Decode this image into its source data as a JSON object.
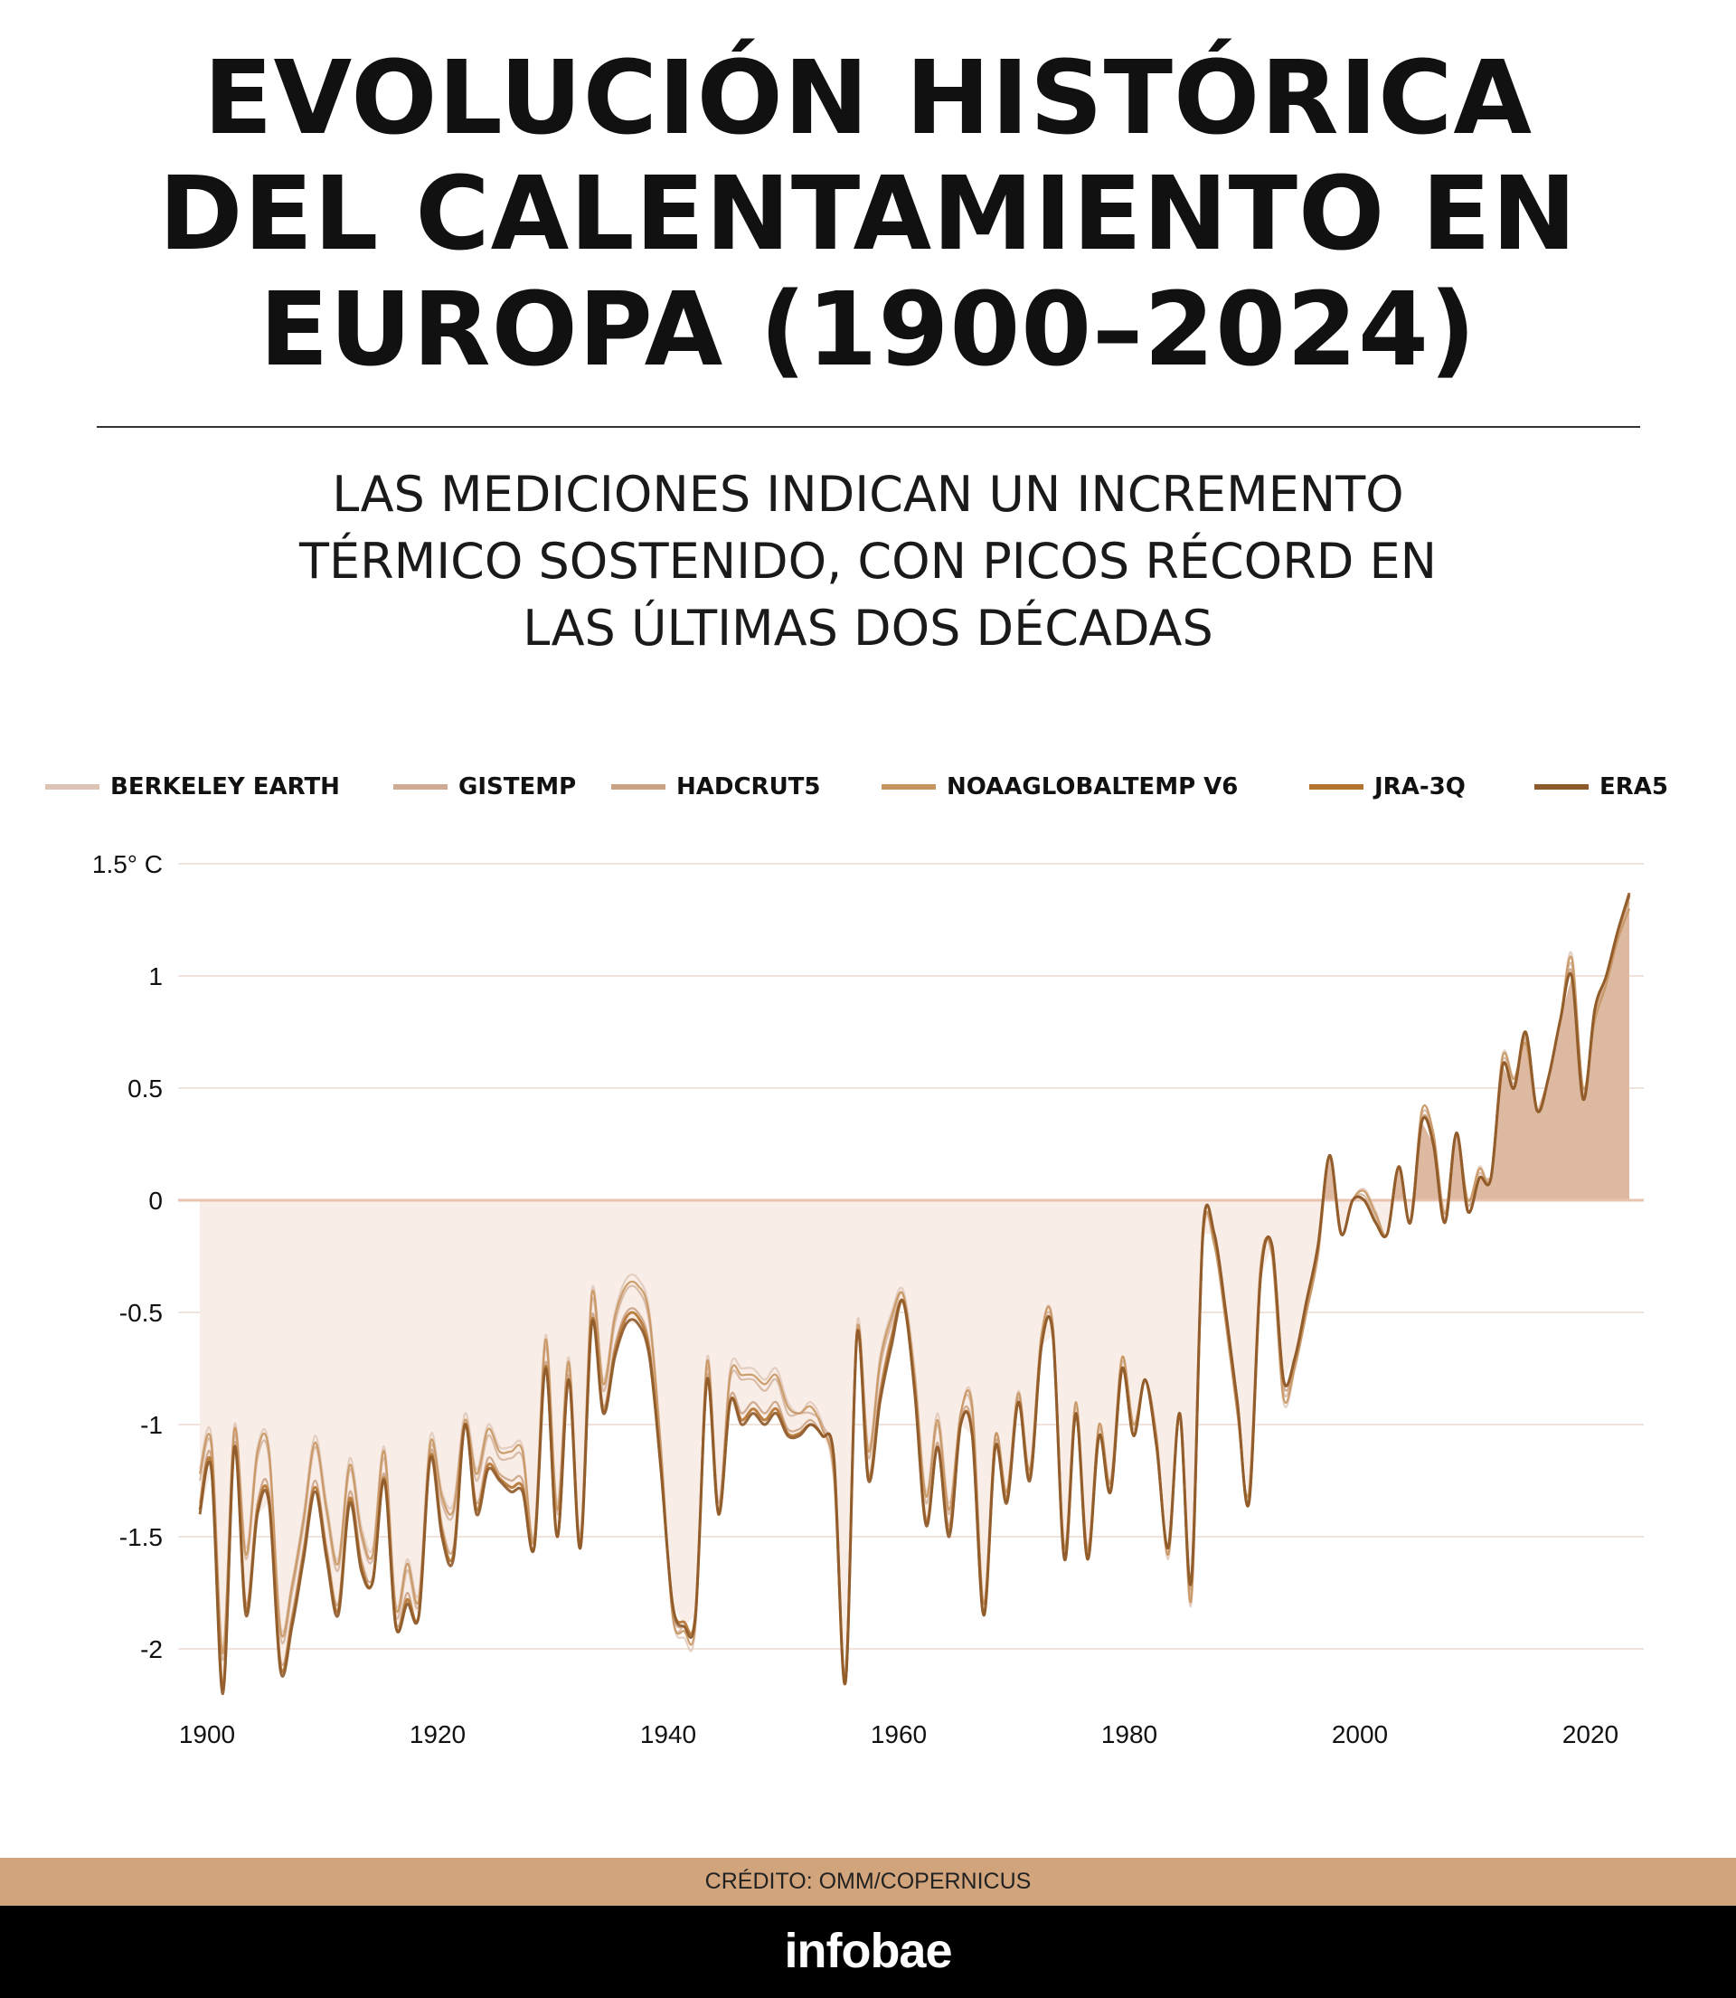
{
  "title_lines": [
    "EVOLUCIÓN HISTÓRICA",
    "DEL CALENTAMIENTO EN",
    "EUROPA (1900–2024)"
  ],
  "subtitle_lines": [
    "LAS MEDICIONES INDICAN UN INCREMENTO",
    "TÉRMICO SOSTENIDO, CON PICOS RÉCORD EN",
    "LAS ÚLTIMAS DOS DÉCADAS"
  ],
  "credit": "CRÉDITO: OMM/COPERNICUS",
  "logo": "infobae",
  "chart_data": {
    "type": "line",
    "title": "EVOLUCIÓN HISTÓRICA DEL CALENTAMIENTO EN EUROPA (1900–2024)",
    "xlabel": "",
    "ylabel": "",
    "x_start": 1900,
    "x_end": 2024,
    "xlim": [
      1900,
      2025
    ],
    "ylim": [
      -2.25,
      1.5
    ],
    "y_ticks": [
      1.5,
      1,
      0.5,
      0,
      -0.5,
      -1,
      -1.5,
      -2
    ],
    "y_tick_labels": [
      "1.5° C",
      "1",
      "0.5",
      "0",
      "-0.5",
      "-1",
      "-1.5",
      "-2"
    ],
    "x_ticks": [
      1900,
      1920,
      1940,
      1960,
      1980,
      2000,
      2020
    ],
    "x_tick_labels": [
      "1900",
      "1920",
      "1940",
      "1960",
      "1980",
      "2000",
      "2020"
    ],
    "grid": true,
    "legend_position": "top",
    "fill": {
      "below_zero": "#f8ede7",
      "above_zero": "#dcb9a0"
    },
    "series": [
      {
        "name": "BERKELEY EARTH",
        "color": "#dcc3b3",
        "values": [
          -1.2,
          -1.05,
          -2.0,
          -1.0,
          -1.55,
          -1.1,
          -1.1,
          -1.9,
          -1.7,
          -1.4,
          -1.05,
          -1.35,
          -1.6,
          -1.15,
          -1.45,
          -1.55,
          -1.1,
          -1.8,
          -1.6,
          -1.75,
          -1.05,
          -1.3,
          -1.35,
          -0.95,
          -1.2,
          -1.0,
          -1.1,
          -1.1,
          -1.1,
          -1.5,
          -0.6,
          -1.35,
          -0.7,
          -1.5,
          -0.4,
          -0.8,
          -0.5,
          -0.35,
          -0.35,
          -0.5,
          -1.1,
          -1.85,
          -1.95,
          -1.9,
          -0.7,
          -1.35,
          -0.75,
          -0.75,
          -0.75,
          -0.8,
          -0.75,
          -0.9,
          -0.95,
          -0.9,
          -1.0,
          -1.25,
          -2.1,
          -0.55,
          -1.1,
          -0.7,
          -0.5,
          -0.4,
          -0.75,
          -1.3,
          -0.95,
          -1.35,
          -0.95,
          -0.9,
          -1.8,
          -1.05,
          -1.3,
          -0.85,
          -1.2,
          -0.6,
          -0.55,
          -1.55,
          -0.9,
          -1.55,
          -1.0,
          -1.25,
          -0.7,
          -1.0,
          -0.8,
          -1.05,
          -1.6,
          -0.95,
          -1.8,
          -0.2,
          -0.2,
          -0.55,
          -0.95,
          -1.3,
          -0.3,
          -0.25,
          -0.9,
          -0.75,
          -0.5,
          -0.25,
          0.2,
          -0.15,
          0.0,
          0.05,
          -0.05,
          -0.15,
          0.15,
          -0.1,
          0.4,
          0.3,
          -0.05,
          0.3,
          0.0,
          0.15,
          0.1,
          0.65,
          0.55,
          0.7,
          0.4,
          0.55,
          0.8,
          1.1,
          0.5,
          0.8,
          0.95,
          1.15,
          1.3
        ]
      },
      {
        "name": "GISTEMP",
        "color": "#cfab93",
        "values": [
          -1.25,
          -1.1,
          -2.05,
          -1.05,
          -1.6,
          -1.15,
          -1.15,
          -1.95,
          -1.75,
          -1.45,
          -1.1,
          -1.4,
          -1.65,
          -1.2,
          -1.5,
          -1.6,
          -1.15,
          -1.85,
          -1.65,
          -1.8,
          -1.1,
          -1.35,
          -1.4,
          -1.0,
          -1.25,
          -1.05,
          -1.15,
          -1.15,
          -1.15,
          -1.5,
          -0.65,
          -1.4,
          -0.75,
          -1.5,
          -0.45,
          -0.85,
          -0.55,
          -0.4,
          -0.4,
          -0.55,
          -1.1,
          -1.85,
          -1.9,
          -1.85,
          -0.75,
          -1.35,
          -0.8,
          -0.8,
          -0.8,
          -0.85,
          -0.8,
          -0.95,
          -0.95,
          -0.95,
          -1.0,
          -1.2,
          -2.1,
          -0.6,
          -1.15,
          -0.75,
          -0.55,
          -0.42,
          -0.8,
          -1.35,
          -1.0,
          -1.4,
          -0.95,
          -0.95,
          -1.8,
          -1.05,
          -1.3,
          -0.88,
          -1.2,
          -0.62,
          -0.58,
          -1.55,
          -0.92,
          -1.58,
          -1.02,
          -1.28,
          -0.72,
          -1.02,
          -0.8,
          -1.08,
          -1.58,
          -0.95,
          -1.75,
          -0.18,
          -0.18,
          -0.52,
          -0.92,
          -1.32,
          -0.32,
          -0.22,
          -0.85,
          -0.72,
          -0.48,
          -0.22,
          0.2,
          -0.15,
          0.0,
          0.02,
          -0.08,
          -0.15,
          0.15,
          -0.1,
          0.38,
          0.28,
          -0.08,
          0.3,
          -0.02,
          0.12,
          0.1,
          0.62,
          0.52,
          0.72,
          0.4,
          0.55,
          0.8,
          1.05,
          0.48,
          0.82,
          0.98,
          1.18,
          1.33
        ]
      },
      {
        "name": "HADCRUT5",
        "color": "#cba284",
        "values": [
          -1.35,
          -1.15,
          -2.15,
          -1.08,
          -1.8,
          -1.35,
          -1.3,
          -2.05,
          -1.85,
          -1.55,
          -1.25,
          -1.55,
          -1.8,
          -1.3,
          -1.6,
          -1.68,
          -1.22,
          -1.88,
          -1.75,
          -1.85,
          -1.12,
          -1.45,
          -1.55,
          -1.0,
          -1.35,
          -1.15,
          -1.22,
          -1.25,
          -1.25,
          -1.55,
          -0.72,
          -1.48,
          -0.78,
          -1.55,
          -0.52,
          -0.92,
          -0.65,
          -0.5,
          -0.5,
          -0.65,
          -1.18,
          -1.82,
          -1.9,
          -1.85,
          -0.78,
          -1.4,
          -0.88,
          -0.95,
          -0.9,
          -0.95,
          -0.9,
          -1.02,
          -1.02,
          -0.98,
          -1.05,
          -1.15,
          -2.15,
          -0.6,
          -1.22,
          -0.85,
          -0.6,
          -0.45,
          -0.82,
          -1.42,
          -1.08,
          -1.45,
          -0.98,
          -1.02,
          -1.85,
          -1.08,
          -1.32,
          -0.9,
          -1.22,
          -0.65,
          -0.6,
          -1.58,
          -0.95,
          -1.6,
          -1.05,
          -1.3,
          -0.75,
          -1.05,
          -0.8,
          -1.1,
          -1.55,
          -0.95,
          -1.72,
          -0.15,
          -0.15,
          -0.5,
          -0.9,
          -1.35,
          -0.35,
          -0.2,
          -0.82,
          -0.72,
          -0.46,
          -0.2,
          0.2,
          -0.15,
          0.0,
          0.0,
          -0.1,
          -0.15,
          0.15,
          -0.1,
          0.36,
          0.26,
          -0.1,
          0.3,
          -0.05,
          0.1,
          0.1,
          0.6,
          0.5,
          0.74,
          0.4,
          0.55,
          0.8,
          1.02,
          0.46,
          0.84,
          1.0,
          1.2,
          1.35
        ]
      },
      {
        "name": "NOAAGLOBALTEMP V6",
        "color": "#c8955f",
        "values": [
          -1.22,
          -1.08,
          -2.02,
          -1.02,
          -1.58,
          -1.12,
          -1.12,
          -1.92,
          -1.72,
          -1.42,
          -1.08,
          -1.38,
          -1.62,
          -1.18,
          -1.48,
          -1.58,
          -1.12,
          -1.82,
          -1.62,
          -1.78,
          -1.08,
          -1.32,
          -1.38,
          -0.98,
          -1.22,
          -1.02,
          -1.12,
          -1.12,
          -1.12,
          -1.52,
          -0.62,
          -1.38,
          -0.72,
          -1.52,
          -0.42,
          -0.82,
          -0.52,
          -0.38,
          -0.38,
          -0.52,
          -1.12,
          -1.85,
          -1.92,
          -1.88,
          -0.72,
          -1.38,
          -0.78,
          -0.78,
          -0.78,
          -0.82,
          -0.78,
          -0.92,
          -0.95,
          -0.92,
          -1.02,
          -1.22,
          -2.12,
          -0.58,
          -1.12,
          -0.72,
          -0.52,
          -0.42,
          -0.78,
          -1.32,
          -0.98,
          -1.38,
          -0.95,
          -0.92,
          -1.8,
          -1.05,
          -1.3,
          -0.86,
          -1.2,
          -0.6,
          -0.56,
          -1.55,
          -0.9,
          -1.56,
          -1.0,
          -1.26,
          -0.7,
          -1.0,
          -0.8,
          -1.06,
          -1.58,
          -0.95,
          -1.78,
          -0.18,
          -0.2,
          -0.55,
          -0.95,
          -1.3,
          -0.3,
          -0.24,
          -0.88,
          -0.74,
          -0.5,
          -0.24,
          0.2,
          -0.15,
          0.0,
          0.04,
          -0.06,
          -0.15,
          0.15,
          -0.1,
          0.4,
          0.3,
          -0.06,
          0.3,
          0.0,
          0.14,
          0.1,
          0.64,
          0.54,
          0.7,
          0.4,
          0.55,
          0.8,
          1.08,
          0.5,
          0.8,
          0.96,
          1.16,
          1.3
        ]
      },
      {
        "name": "JRA-3Q",
        "color": "#b4722f",
        "values": [
          -1.38,
          -1.18,
          -2.18,
          -1.1,
          -1.83,
          -1.38,
          -1.33,
          -2.08,
          -1.88,
          -1.58,
          -1.28,
          -1.58,
          -1.83,
          -1.33,
          -1.63,
          -1.7,
          -1.24,
          -1.9,
          -1.78,
          -1.85,
          -1.14,
          -1.48,
          -1.58,
          -1.0,
          -1.38,
          -1.18,
          -1.24,
          -1.28,
          -1.28,
          -1.55,
          -0.74,
          -1.5,
          -0.8,
          -1.55,
          -0.54,
          -0.94,
          -0.68,
          -0.52,
          -0.52,
          -0.68,
          -1.2,
          -1.8,
          -1.88,
          -1.84,
          -0.8,
          -1.4,
          -0.9,
          -0.98,
          -0.93,
          -0.98,
          -0.93,
          -1.04,
          -1.04,
          -1.0,
          -1.05,
          -1.15,
          -2.15,
          -0.6,
          -1.24,
          -0.88,
          -0.62,
          -0.45,
          -0.84,
          -1.44,
          -1.1,
          -1.48,
          -1.0,
          -1.04,
          -1.85,
          -1.1,
          -1.34,
          -0.9,
          -1.24,
          -0.65,
          -0.6,
          -1.6,
          -0.95,
          -1.6,
          -1.05,
          -1.3,
          -0.75,
          -1.05,
          -0.8,
          -1.1,
          -1.55,
          -0.95,
          -1.7,
          -0.15,
          -0.15,
          -0.5,
          -0.9,
          -1.35,
          -0.35,
          -0.2,
          -0.8,
          -0.7,
          -0.45,
          -0.2,
          0.2,
          -0.15,
          0.0,
          0.0,
          -0.1,
          -0.15,
          0.15,
          -0.1,
          0.35,
          0.25,
          -0.1,
          0.3,
          -0.05,
          0.1,
          0.1,
          0.6,
          0.5,
          0.75,
          0.4,
          0.55,
          0.8,
          1.0,
          0.45,
          0.85,
          1.0,
          1.2,
          1.36
        ]
      },
      {
        "name": "ERA5",
        "color": "#8e5a2a",
        "values": [
          -1.4,
          -1.2,
          -2.2,
          -1.1,
          -1.85,
          -1.4,
          -1.35,
          -2.1,
          -1.9,
          -1.6,
          -1.3,
          -1.6,
          -1.85,
          -1.35,
          -1.65,
          -1.7,
          -1.25,
          -1.9,
          -1.8,
          -1.85,
          -1.15,
          -1.5,
          -1.6,
          -1.0,
          -1.4,
          -1.2,
          -1.25,
          -1.3,
          -1.3,
          -1.55,
          -0.75,
          -1.5,
          -0.8,
          -1.55,
          -0.55,
          -0.95,
          -0.7,
          -0.55,
          -0.55,
          -0.7,
          -1.2,
          -1.8,
          -1.9,
          -1.85,
          -0.8,
          -1.4,
          -0.9,
          -1.0,
          -0.95,
          -1.0,
          -0.95,
          -1.05,
          -1.05,
          -1.0,
          -1.05,
          -1.15,
          -2.15,
          -0.6,
          -1.25,
          -0.9,
          -0.65,
          -0.45,
          -0.85,
          -1.45,
          -1.1,
          -1.5,
          -1.0,
          -1.05,
          -1.85,
          -1.1,
          -1.35,
          -0.9,
          -1.25,
          -0.65,
          -0.6,
          -1.6,
          -0.95,
          -1.6,
          -1.05,
          -1.3,
          -0.75,
          -1.05,
          -0.8,
          -1.1,
          -1.55,
          -0.95,
          -1.7,
          -0.15,
          -0.15,
          -0.5,
          -0.9,
          -1.35,
          -0.35,
          -0.2,
          -0.8,
          -0.7,
          -0.45,
          -0.2,
          0.2,
          -0.15,
          0.0,
          0.0,
          -0.1,
          -0.15,
          0.15,
          -0.1,
          0.35,
          0.25,
          -0.1,
          0.3,
          -0.05,
          0.1,
          0.1,
          0.6,
          0.5,
          0.75,
          0.4,
          0.55,
          0.8,
          1.0,
          0.45,
          0.85,
          1.0,
          1.2,
          1.37
        ]
      }
    ]
  }
}
